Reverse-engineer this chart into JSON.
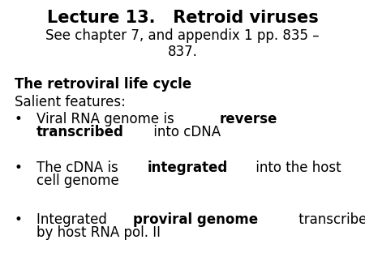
{
  "background_color": "#ffffff",
  "title_line1": "Lecture 13.   Retroid viruses",
  "title_line2": "See chapter 7, and appendix 1 pp. 835 –",
  "title_line3": "837.",
  "section_heading": "The retroviral life cycle",
  "salient": "Salient features:",
  "bullets": [
    {
      "parts": [
        {
          "text": "Viral RNA genome is ",
          "bold": false
        },
        {
          "text": "reverse\ntranscribed",
          "bold": true
        },
        {
          "text": " into cDNA",
          "bold": false
        }
      ]
    },
    {
      "parts": [
        {
          "text": "The cDNA is ",
          "bold": false
        },
        {
          "text": "integrated",
          "bold": true
        },
        {
          "text": " into the host\ncell genome",
          "bold": false
        }
      ]
    },
    {
      "parts": [
        {
          "text": "Integrated ",
          "bold": false
        },
        {
          "text": "proviral genome",
          "bold": true
        },
        {
          "text": " transcribed\nby host RNA pol. II",
          "bold": false
        }
      ]
    }
  ],
  "font_family": "Comic Sans MS",
  "title_fontsize": 15,
  "subtitle_fontsize": 12,
  "body_fontsize": 12,
  "text_color": "#000000",
  "fig_width": 4.5,
  "fig_height": 3.38,
  "dpi": 100
}
